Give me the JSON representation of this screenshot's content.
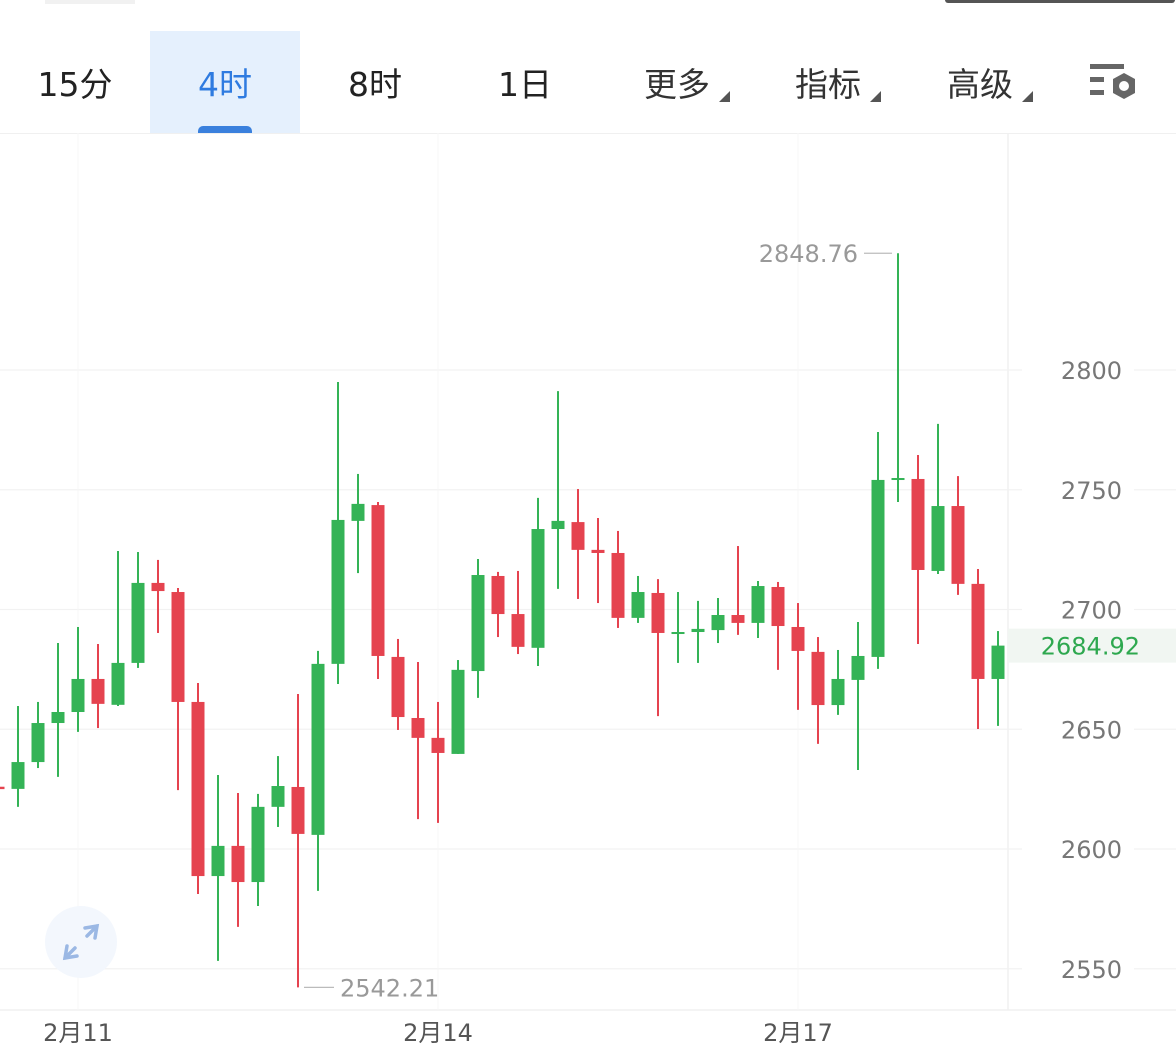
{
  "tabs": [
    {
      "label": "15分",
      "active": false
    },
    {
      "label": "4时",
      "active": true
    },
    {
      "label": "8时",
      "active": false
    },
    {
      "label": "1日",
      "active": false
    },
    {
      "label": "更多",
      "dropdown": true
    },
    {
      "label": "指标",
      "dropdown": true
    },
    {
      "label": "高级",
      "dropdown": true
    }
  ],
  "settings_icon": "chart-settings-icon",
  "expand_icon": "expand-arrows-icon",
  "colors": {
    "up": "#34b356",
    "down": "#e5434f",
    "accent": "#2f7be0",
    "last_price": "#2ea84f"
  },
  "chart_data": {
    "type": "candlestick",
    "interval": "4时",
    "y_ticks": [
      "2800",
      "2750",
      "2700",
      "2650",
      "2600",
      "2550"
    ],
    "ylim": [
      2535,
      2898
    ],
    "x_ticks": [
      {
        "label": "2月11",
        "index": 4
      },
      {
        "label": "2月14",
        "index": 22
      },
      {
        "label": "2月17",
        "index": 40
      }
    ],
    "grid": true,
    "max_label": "2848.76",
    "min_label": "2542.21",
    "last_price": "2684.92",
    "candles": [
      [
        2626,
        2657.6,
        2557,
        2625
      ],
      [
        2625.1,
        2659.7,
        2617.6,
        2636.3
      ],
      [
        2636.3,
        2661.4,
        2633.8,
        2652.6
      ],
      [
        2652.6,
        2686,
        2630.1,
        2657.2
      ],
      [
        2657.2,
        2692.7,
        2648.9,
        2671
      ],
      [
        2671,
        2685.6,
        2650.5,
        2660.6
      ],
      [
        2660.2,
        2724.4,
        2659.7,
        2677.7
      ],
      [
        2677.7,
        2724,
        2675.6,
        2711.1
      ],
      [
        2711.1,
        2720.7,
        2690.2,
        2707.7
      ],
      [
        2707.3,
        2709,
        2624.6,
        2661.4
      ],
      [
        2661.4,
        2669.3,
        2581.2,
        2588.7
      ],
      [
        2588.7,
        2630.9,
        2553.3,
        2601.3
      ],
      [
        2601.3,
        2623.4,
        2567.5,
        2586.2
      ],
      [
        2586.2,
        2623,
        2576.2,
        2617.6
      ],
      [
        2617.6,
        2638.8,
        2609.2,
        2626.3
      ],
      [
        2625.9,
        2664.7,
        2542.21,
        2606.3
      ],
      [
        2605.9,
        2682.7,
        2582.5,
        2677.3
      ],
      [
        2677.3,
        2795,
        2668.9,
        2737.4
      ],
      [
        2737,
        2756.6,
        2715.2,
        2744.1
      ],
      [
        2743.6,
        2744.9,
        2671,
        2680.6
      ],
      [
        2680.2,
        2687.7,
        2649.7,
        2655.1
      ],
      [
        2654.7,
        2678.1,
        2612.5,
        2646.4
      ],
      [
        2646.4,
        2661.4,
        2610.9,
        2640.1
      ],
      [
        2639.7,
        2678.9,
        2639.7,
        2674.8
      ],
      [
        2674.3,
        2721.1,
        2663.1,
        2714.4
      ],
      [
        2714,
        2715.7,
        2688.5,
        2698.1
      ],
      [
        2698.1,
        2716.1,
        2681.4,
        2684.4
      ],
      [
        2684,
        2746.6,
        2676.4,
        2733.6
      ],
      [
        2733.6,
        2791.2,
        2708.6,
        2737
      ],
      [
        2736.5,
        2750.3,
        2704.4,
        2724.9
      ],
      [
        2724.9,
        2738.2,
        2702.7,
        2723.6
      ],
      [
        2723.6,
        2732.8,
        2692.3,
        2696.5
      ],
      [
        2696.5,
        2714,
        2694.4,
        2707.3
      ],
      [
        2706.9,
        2712.7,
        2655.5,
        2690.2
      ],
      [
        2690.2,
        2707.3,
        2677.7,
        2690.6
      ],
      [
        2690.6,
        2703.6,
        2677.7,
        2691.9
      ],
      [
        2691.4,
        2704.8,
        2686,
        2697.7
      ],
      [
        2697.7,
        2726.5,
        2689.4,
        2694.4
      ],
      [
        2694.4,
        2711.9,
        2688.1,
        2709.8
      ],
      [
        2709.4,
        2711.5,
        2674.8,
        2693.1
      ],
      [
        2692.7,
        2702.7,
        2658.1,
        2682.7
      ],
      [
        2682.3,
        2688.5,
        2643.9,
        2660.1
      ],
      [
        2660.1,
        2683.1,
        2656,
        2671
      ],
      [
        2670.6,
        2694.8,
        2633,
        2680.6
      ],
      [
        2680.2,
        2774.1,
        2675.2,
        2754.1
      ],
      [
        2754.1,
        2848.76,
        2744.9,
        2754.9
      ],
      [
        2754.5,
        2764.5,
        2685.6,
        2716.5
      ],
      [
        2716.1,
        2777.5,
        2714.8,
        2743.2
      ],
      [
        2743.2,
        2755.7,
        2706.1,
        2710.7
      ],
      [
        2710.7,
        2716.9,
        2650.1,
        2671
      ],
      [
        2671,
        2691,
        2651.4,
        2684.92
      ]
    ],
    "candle_fields": [
      "open",
      "high",
      "low",
      "close"
    ]
  }
}
